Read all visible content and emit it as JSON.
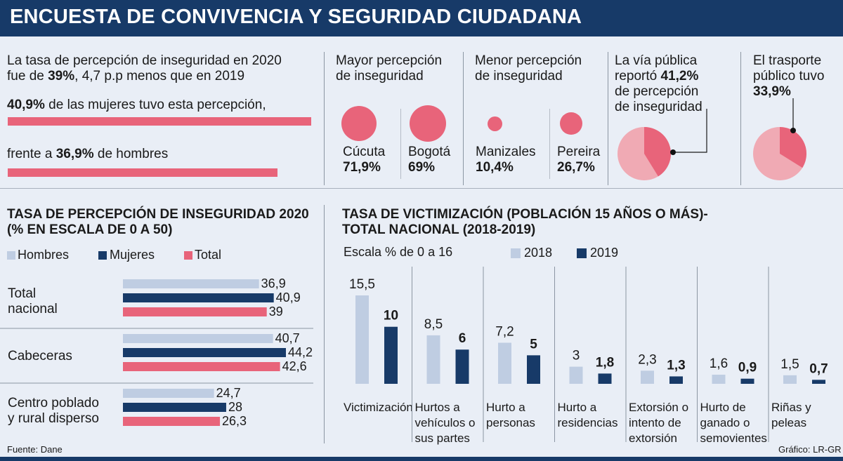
{
  "header": {
    "title": "ENCUESTA DE CONVIVENCIA Y SEGURIDAD CIUDADANA"
  },
  "intro": {
    "line1": "La tasa de percepción de inseguridad en 2020",
    "line2_pre": "fue de ",
    "line2_bold": "39%",
    "line2_post": ", 4,7 p.p menos que en 2019",
    "women_bold": "40,9%",
    "women_text": " de las mujeres tuvo esta percepción,",
    "men_pre": "frente a ",
    "men_bold": "36,9%",
    "men_post": " de hombres",
    "women_value": 40.9,
    "men_value": 36.9
  },
  "cities": {
    "mayor_label_1": "Mayor percepción",
    "mayor_label_2": "de inseguridad",
    "menor_label_1": "Menor percepción",
    "menor_label_2": "de inseguridad",
    "items": [
      {
        "name": "Cúcuta",
        "value": "71,9%",
        "num": 71.9
      },
      {
        "name": "Bogotá",
        "value": "69%",
        "num": 69
      },
      {
        "name": "Manizales",
        "value": "10,4%",
        "num": 10.4
      },
      {
        "name": "Pereira",
        "value": "26,7%",
        "num": 26.7
      }
    ]
  },
  "via_publica": {
    "l1": "La vía pública",
    "l2_pre": "reportó ",
    "l2_bold": "41,2%",
    "l3": "de percepción",
    "l4": "de inseguridad",
    "value": 41.2
  },
  "transporte": {
    "l1": "El trasporte",
    "l2": "público tuvo",
    "l3_bold": "33,9%",
    "value": 33.9
  },
  "colors": {
    "light": "#bfcde2",
    "dark": "#173a68",
    "pink": "#e8647a",
    "pie_light": "#f0aab4"
  },
  "chart_data": [
    {
      "type": "bar",
      "title": "TASA DE PERCEPCIÓN DE INSEGURIDAD 2020",
      "subtitle": "(% EN ESCALA DE 0 A 50)",
      "orientation": "horizontal",
      "xlim": [
        0,
        50
      ],
      "categories": [
        "Total nacional",
        "Cabeceras",
        "Centro poblado y rural disperso"
      ],
      "category_lines": [
        [
          "Total",
          "nacional"
        ],
        [
          "Cabeceras"
        ],
        [
          "Centro poblado",
          "y rural disperso"
        ]
      ],
      "series": [
        {
          "name": "Hombres",
          "values": [
            36.9,
            40.7,
            24.7
          ],
          "labels": [
            "36,9",
            "40,7",
            "24,7"
          ]
        },
        {
          "name": "Mujeres",
          "values": [
            40.9,
            44.2,
            28
          ],
          "labels": [
            "40,9",
            "44,2",
            "28"
          ]
        },
        {
          "name": "Total",
          "values": [
            39,
            42.6,
            26.3
          ],
          "labels": [
            "39",
            "42,6",
            "26,3"
          ]
        }
      ],
      "legend": "top"
    },
    {
      "type": "bar",
      "title": "TASA DE VICTIMIZACIÓN (POBLACIÓN 15 AÑOS O MÁS)-",
      "subtitle": "TOTAL NACIONAL (2018-2019)",
      "scale_note": "Escala % de 0 a 16",
      "ylim": [
        0,
        16
      ],
      "categories": [
        "Victimización",
        "Hurtos a vehículos o sus partes",
        "Hurto a personas",
        "Hurto a residencias",
        "Extorsión o intento de extorsión",
        "Hurto de ganado o semovientes",
        "Riñas y peleas"
      ],
      "category_lines": [
        [
          "Victimización"
        ],
        [
          "Hurtos a",
          "vehículos o",
          "sus partes"
        ],
        [
          "Hurto a",
          "personas"
        ],
        [
          "Hurto a",
          "residencias"
        ],
        [
          "Extorsión o",
          "intento de",
          "extorsión"
        ],
        [
          "Hurto de",
          "ganado o",
          "semovientes"
        ],
        [
          "Riñas y",
          "peleas"
        ]
      ],
      "series": [
        {
          "name": "2018",
          "values": [
            15.5,
            8.5,
            7.2,
            3,
            2.3,
            1.6,
            1.5
          ],
          "labels": [
            "15,5",
            "8,5",
            "7,2",
            "3",
            "2,3",
            "1,6",
            "1,5"
          ]
        },
        {
          "name": "2019",
          "values": [
            10,
            6,
            5,
            1.8,
            1.3,
            0.9,
            0.7
          ],
          "labels": [
            "10",
            "6",
            "5",
            "1,8",
            "1,3",
            "0,9",
            "0,7"
          ]
        }
      ],
      "legend": "top"
    }
  ],
  "footer": {
    "source": "Fuente: Dane",
    "credit": "Gráfico: LR-GR"
  }
}
